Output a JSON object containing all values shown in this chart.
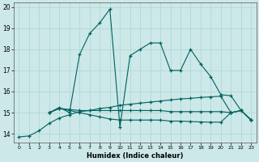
{
  "xlabel": "Humidex (Indice chaleur)",
  "x_values": [
    0,
    1,
    2,
    3,
    4,
    5,
    6,
    7,
    8,
    9,
    10,
    11,
    12,
    13,
    14,
    15,
    16,
    17,
    18,
    19,
    20,
    21,
    22,
    23
  ],
  "line_jagged": [
    null,
    null,
    null,
    15.0,
    15.25,
    15.0,
    17.75,
    18.75,
    19.25,
    19.9,
    14.3,
    17.7,
    18.0,
    18.3,
    18.3,
    17.0,
    17.0,
    18.0,
    17.3,
    16.7,
    15.85,
    15.8,
    15.1,
    14.65
  ],
  "line_ascend": [
    13.85,
    13.9,
    14.15,
    14.5,
    14.75,
    14.9,
    15.05,
    15.1,
    15.2,
    15.25,
    15.35,
    15.4,
    15.45,
    15.5,
    15.55,
    15.6,
    15.65,
    15.68,
    15.72,
    15.75,
    15.78,
    15.0,
    15.1,
    14.65
  ],
  "line_flat": [
    null,
    null,
    null,
    15.0,
    15.2,
    15.15,
    15.1,
    15.1,
    15.1,
    15.1,
    15.1,
    15.1,
    15.1,
    15.1,
    15.1,
    15.05,
    15.05,
    15.05,
    15.05,
    15.05,
    15.05,
    15.0,
    15.1,
    14.65
  ],
  "line_descend": [
    null,
    null,
    null,
    15.0,
    15.2,
    15.1,
    15.0,
    14.9,
    14.8,
    14.7,
    14.65,
    14.65,
    14.65,
    14.65,
    14.65,
    14.6,
    14.6,
    14.58,
    14.56,
    14.55,
    14.55,
    15.0,
    15.1,
    14.65
  ],
  "bg_color": "#cde8e8",
  "grid_color": "#b0d8d8",
  "line_color": "#006060",
  "ylim": [
    13.6,
    20.2
  ],
  "xlim": [
    -0.5,
    23.5
  ],
  "yticks": [
    14,
    15,
    16,
    17,
    18,
    19,
    20
  ]
}
